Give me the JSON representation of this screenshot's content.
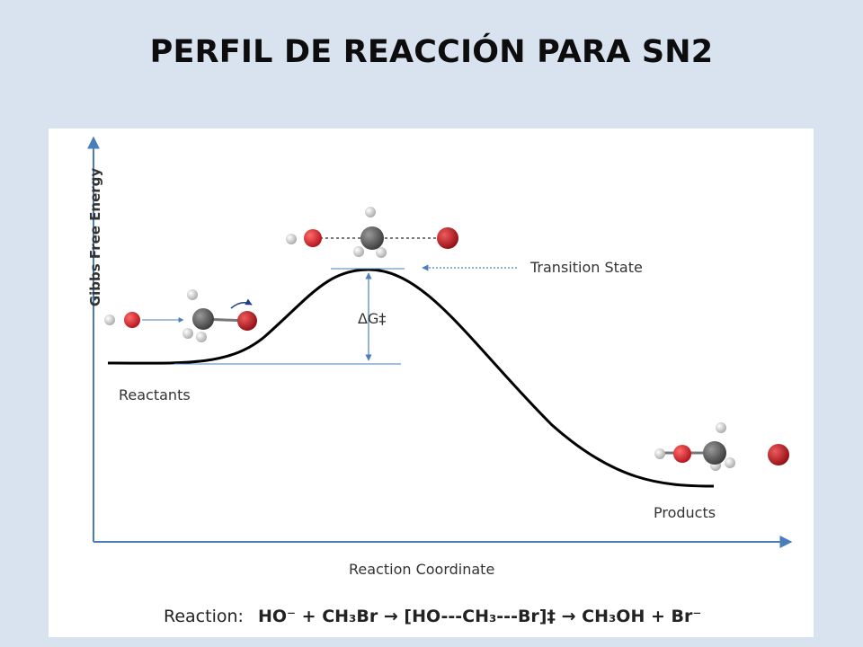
{
  "title": "PERFIL DE REACCIÓN PARA SN2",
  "diagram": {
    "y_axis_label": "Gibbs Free Energy",
    "x_axis_label": "Reaction Coordinate",
    "reactants_label": "Reactants",
    "products_label": "Products",
    "transition_state_label": "Transition State",
    "delta_g_label": "ΔG‡",
    "reaction_prefix": "Reaction:",
    "reaction_equation": "HO⁻ + CH₃Br → [HO---CH₃---Br]‡ → CH₃OH + Br⁻"
  },
  "colors": {
    "background": "#d9e3f0",
    "axis": "#4a7ebb",
    "curve": "#000000",
    "oxygen": "#c8141b",
    "carbon": "#555555",
    "hydrogen": "#dcdcdc",
    "bromine": "#a8121a"
  }
}
